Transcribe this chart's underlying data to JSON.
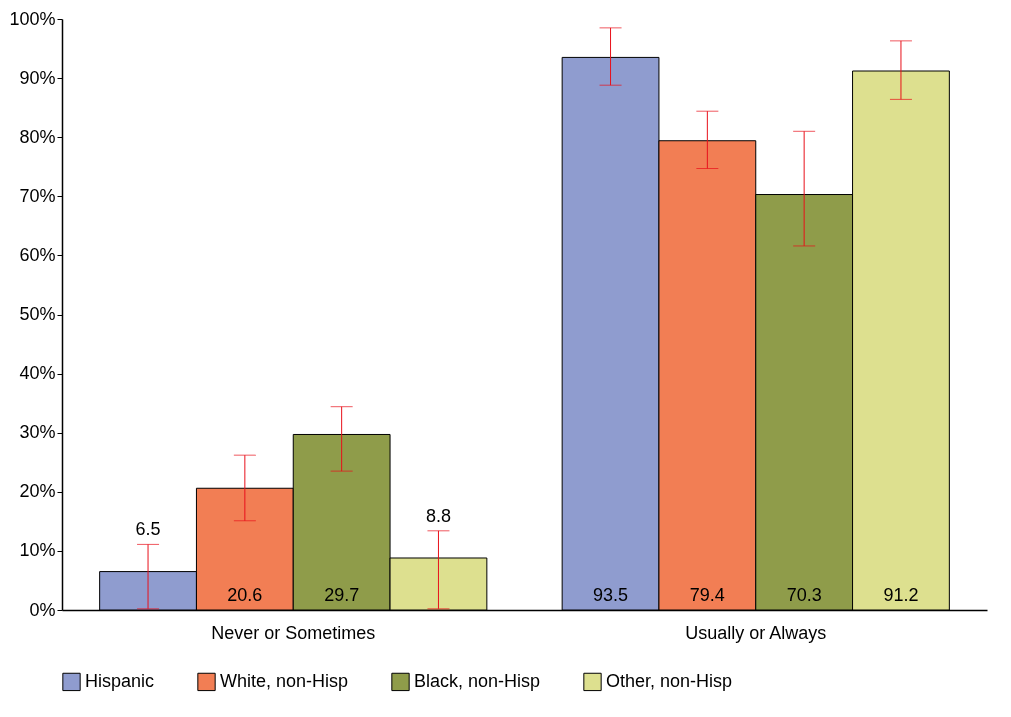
{
  "chart_data": {
    "type": "bar",
    "categories": [
      "Never or Sometimes",
      "Usually or Always"
    ],
    "series": [
      {
        "name": "Hispanic",
        "color": "#8f9ccf",
        "values": [
          6.5,
          93.5
        ],
        "errors": [
          [
            0.2,
            11.1
          ],
          [
            88.8,
            98.5
          ]
        ]
      },
      {
        "name": "White, non-Hisp",
        "color": "#f27e54",
        "values": [
          20.6,
          79.4
        ],
        "errors": [
          [
            15.1,
            26.2
          ],
          [
            74.7,
            84.4
          ]
        ]
      },
      {
        "name": "Black, non-Hisp",
        "color": "#8f9c4a",
        "values": [
          29.7,
          70.3
        ],
        "errors": [
          [
            23.5,
            34.4
          ],
          [
            61.6,
            81.0
          ]
        ]
      },
      {
        "name": "Other, non-Hisp",
        "color": "#dde08f",
        "values": [
          8.8,
          91.2
        ],
        "errors": [
          [
            0.2,
            13.4
          ],
          [
            86.4,
            96.3
          ]
        ]
      }
    ],
    "ylim": [
      0,
      100
    ],
    "yticks": [
      {
        "value": 0,
        "label": "0%"
      },
      {
        "value": 10,
        "label": "10%"
      },
      {
        "value": 20,
        "label": "20%"
      },
      {
        "value": 30,
        "label": "30%"
      },
      {
        "value": 40,
        "label": "40%"
      },
      {
        "value": 50,
        "label": "50%"
      },
      {
        "value": 60,
        "label": "60%"
      },
      {
        "value": 70,
        "label": "70%"
      },
      {
        "value": 80,
        "label": "80%"
      },
      {
        "value": 90,
        "label": "90%"
      },
      {
        "value": 100,
        "label": "100%"
      }
    ],
    "data_labels": true,
    "legend": "bottom",
    "grid": false
  }
}
